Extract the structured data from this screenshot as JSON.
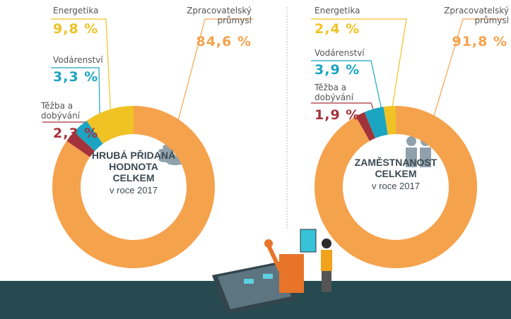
{
  "chart_data": [
    {
      "type": "donut",
      "title": "HRUBÁ PŘIDANÁ HODNOTA CELKEM",
      "subtitle": "v roce 2017",
      "categories": [
        "Zpracovatelský průmysl",
        "Těžba a dobývání",
        "Vodárenství",
        "Energetika"
      ],
      "values": [
        84.6,
        2.3,
        3.3,
        9.8
      ],
      "value_labels": [
        "84,6 %",
        "2,3 %",
        "3,3 %",
        "9,8 %"
      ],
      "colors": [
        "#f5a24c",
        "#a3333a",
        "#1ba5c2",
        "#f1c224"
      ]
    },
    {
      "type": "donut",
      "title": "ZAMĚSTNANOST CELKEM",
      "subtitle": "v roce 2017",
      "categories": [
        "Zpracovatelský průmysl",
        "Těžba a dobývání",
        "Vodárenství",
        "Energetika"
      ],
      "values": [
        91.8,
        1.9,
        3.9,
        2.4
      ],
      "value_labels": [
        "91,8 %",
        "1,9 %",
        "3,9 %",
        "2,4 %"
      ],
      "colors": [
        "#f5a24c",
        "#a3333a",
        "#1ba5c2",
        "#f1c224"
      ]
    }
  ]
}
